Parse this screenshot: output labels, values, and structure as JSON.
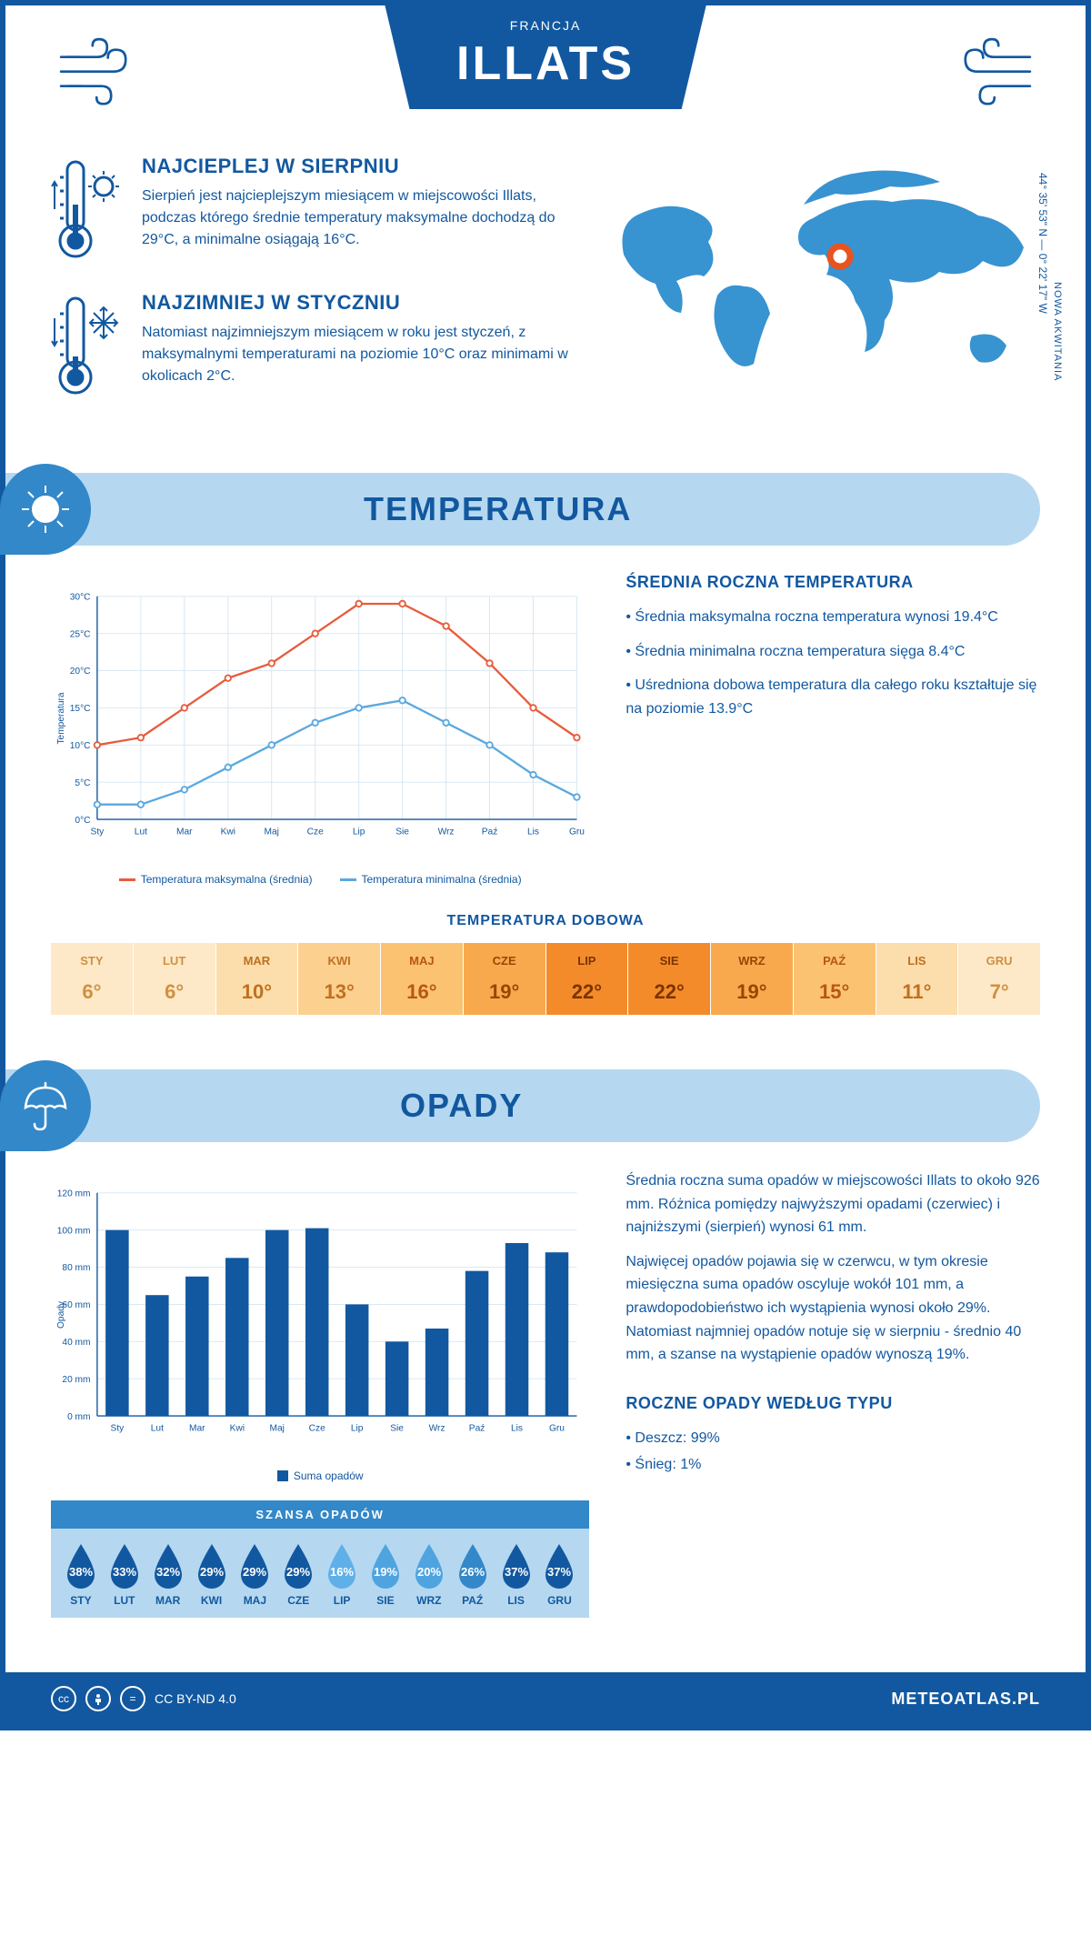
{
  "header": {
    "city": "ILLATS",
    "country": "FRANCJA"
  },
  "map": {
    "coords": "44° 35' 53\" N — 0° 22' 17\" W",
    "region": "NOWA AKWITANIA",
    "land_color": "#3893d1",
    "marker_color": "#e8531f",
    "marker_x": 260,
    "marker_y": 112
  },
  "summaries": [
    {
      "title": "NAJCIEPLEJ W SIERPNIU",
      "text": "Sierpień jest najcieplejszym miesiącem w miejscowości Illats, podczas którego średnie temperatury maksymalne dochodzą do 29°C, a minimalne osiągają 16°C."
    },
    {
      "title": "NAJZIMNIEJ W STYCZNIU",
      "text": "Natomiast najzimniejszym miesiącem w roku jest styczeń, z maksymalnymi temperaturami na poziomie 10°C oraz minimami w okolicach 2°C."
    }
  ],
  "colors": {
    "primary": "#1258a0",
    "light_blue": "#b5d8f0",
    "mid_blue": "#3288c9",
    "max_line": "#e75c3c",
    "min_line": "#5aa8e0",
    "bar": "#1258a0",
    "grid": "#d5e6f2"
  },
  "temperature": {
    "section_title": "TEMPERATURA",
    "annual_title": "ŚREDNIA ROCZNA TEMPERATURA",
    "bullets": [
      "• Średnia maksymalna roczna temperatura wynosi 19.4°C",
      "• Średnia minimalna roczna temperatura sięga 8.4°C",
      "• Uśredniona dobowa temperatura dla całego roku kształtuje się na poziomie 13.9°C"
    ],
    "months": [
      "Sty",
      "Lut",
      "Mar",
      "Kwi",
      "Maj",
      "Cze",
      "Lip",
      "Sie",
      "Wrz",
      "Paź",
      "Lis",
      "Gru"
    ],
    "max": [
      10,
      11,
      15,
      19,
      21,
      25,
      29,
      29,
      26,
      21,
      15,
      11
    ],
    "min": [
      2,
      2,
      4,
      7,
      10,
      13,
      15,
      16,
      13,
      10,
      6,
      3
    ],
    "ylim": [
      0,
      30
    ],
    "ytick": 5,
    "ylabel": "Temperatura",
    "legend_max": "Temperatura maksymalna (średnia)",
    "legend_min": "Temperatura minimalna (średnia)",
    "daily_title": "TEMPERATURA DOBOWA",
    "daily_months": [
      "STY",
      "LUT",
      "MAR",
      "KWI",
      "MAJ",
      "CZE",
      "LIP",
      "SIE",
      "WRZ",
      "PAŹ",
      "LIS",
      "GRU"
    ],
    "daily_vals": [
      6,
      6,
      10,
      13,
      16,
      19,
      22,
      22,
      19,
      15,
      11,
      7
    ],
    "daily_colors": [
      "#fde8c8",
      "#fde8c8",
      "#fcddac",
      "#fcd08f",
      "#fbc272",
      "#f8a94e",
      "#f48b2a",
      "#f48b2a",
      "#f8a94e",
      "#fbc272",
      "#fcddac",
      "#fde8c8"
    ],
    "daily_text_colors": [
      "#d09040",
      "#d09040",
      "#c07020",
      "#c07020",
      "#b85810",
      "#9c4500",
      "#7a3400",
      "#7a3400",
      "#9c4500",
      "#b85810",
      "#c07020",
      "#d09040"
    ]
  },
  "precipitation": {
    "section_title": "OPADY",
    "paragraphs": [
      "Średnia roczna suma opadów w miejscowości Illats to około 926 mm. Różnica pomiędzy najwyższymi opadami (czerwiec) i najniższymi (sierpień) wynosi 61 mm.",
      "Najwięcej opadów pojawia się w czerwcu, w tym okresie miesięczna suma opadów oscyluje wokół 101 mm, a prawdopodobieństwo ich wystąpienia wynosi około 29%. Natomiast najmniej opadów notuje się w sierpniu - średnio 40 mm, a szanse na wystąpienie opadów wynoszą 19%."
    ],
    "type_title": "ROCZNE OPADY WEDŁUG TYPU",
    "types": [
      "• Deszcz: 99%",
      "• Śnieg: 1%"
    ],
    "months": [
      "Sty",
      "Lut",
      "Mar",
      "Kwi",
      "Maj",
      "Cze",
      "Lip",
      "Sie",
      "Wrz",
      "Paź",
      "Lis",
      "Gru"
    ],
    "vals": [
      100,
      65,
      75,
      85,
      100,
      101,
      60,
      40,
      47,
      78,
      93,
      88
    ],
    "ylim": [
      0,
      120
    ],
    "ytick": 20,
    "ylabel": "Opady",
    "legend": "Suma opadów",
    "chance_title": "SZANSA OPADÓW",
    "chance_months": [
      "STY",
      "LUT",
      "MAR",
      "KWI",
      "MAJ",
      "CZE",
      "LIP",
      "SIE",
      "WRZ",
      "PAŹ",
      "LIS",
      "GRU"
    ],
    "chance_vals": [
      38,
      33,
      32,
      29,
      29,
      29,
      16,
      19,
      20,
      26,
      37,
      37
    ],
    "chance_colors": [
      "#1258a0",
      "#1258a0",
      "#1258a0",
      "#1258a0",
      "#1258a0",
      "#1258a0",
      "#5fb0e8",
      "#4fa4e0",
      "#4fa4e0",
      "#3288c9",
      "#1258a0",
      "#1258a0"
    ]
  },
  "footer": {
    "license": "CC BY-ND 4.0",
    "site": "METEOATLAS.PL"
  }
}
